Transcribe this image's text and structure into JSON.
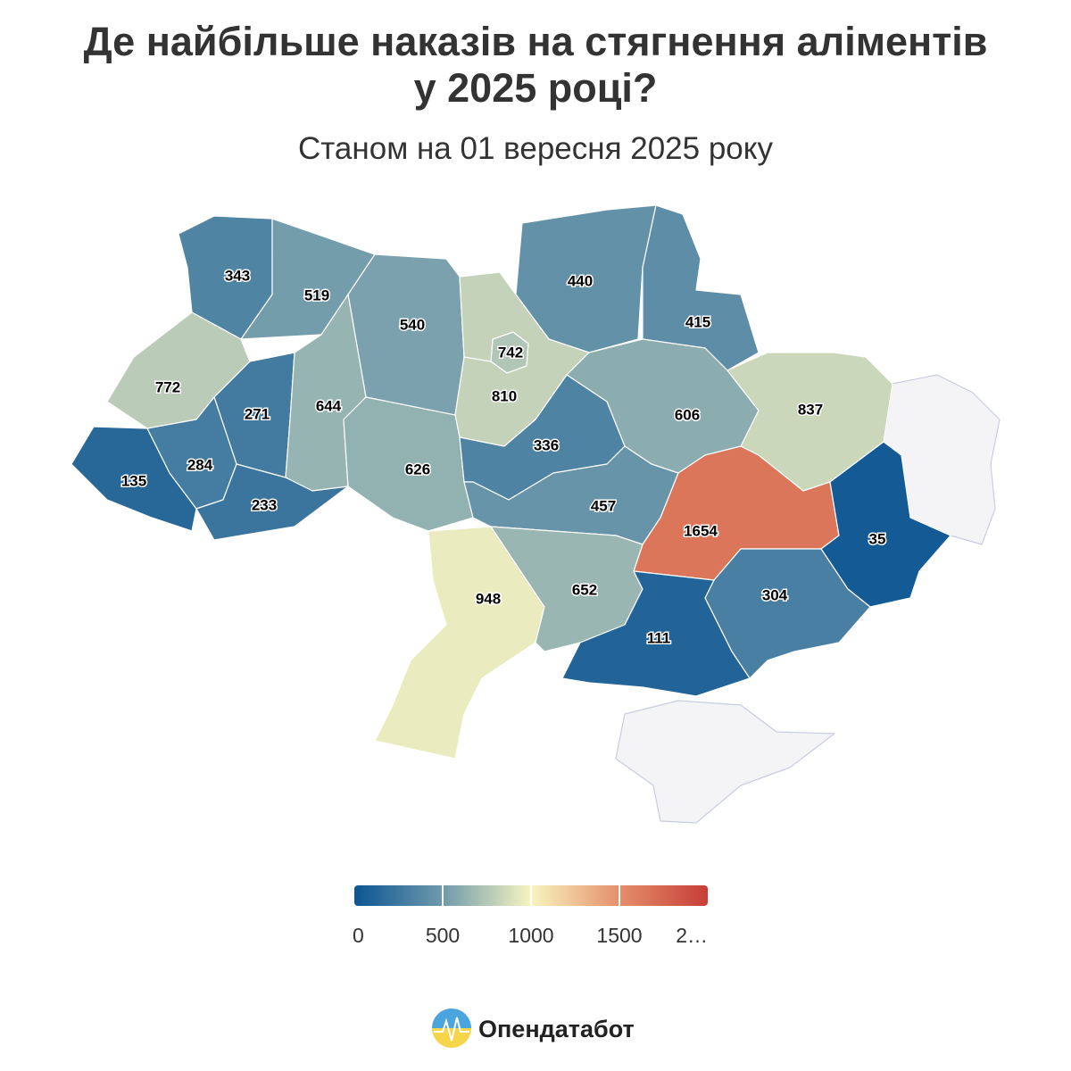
{
  "chart_data": {
    "type": "choropleth",
    "title": "Де найбільше наказів на стягнення аліментів у 2025 році?",
    "subtitle": "Станом на 01 вересня 2025 року",
    "values": [
      343,
      519,
      540,
      440,
      415,
      772,
      271,
      644,
      742,
      810,
      606,
      837,
      135,
      284,
      233,
      626,
      336,
      457,
      1654,
      35,
      948,
      652,
      304,
      111
    ],
    "colors": [
      "#0d5593",
      "#6f9aab",
      "#f8f5c1",
      "#e48f6b",
      "#c63e37"
    ],
    "no_data_color": "#f4f4f6",
    "lim": [
      0,
      2000
    ],
    "ticks": [
      0,
      500,
      1000,
      1500,
      {
        "value": 2000,
        "label": "2…"
      }
    ]
  },
  "footer": {
    "brand": "Опендатабот"
  }
}
